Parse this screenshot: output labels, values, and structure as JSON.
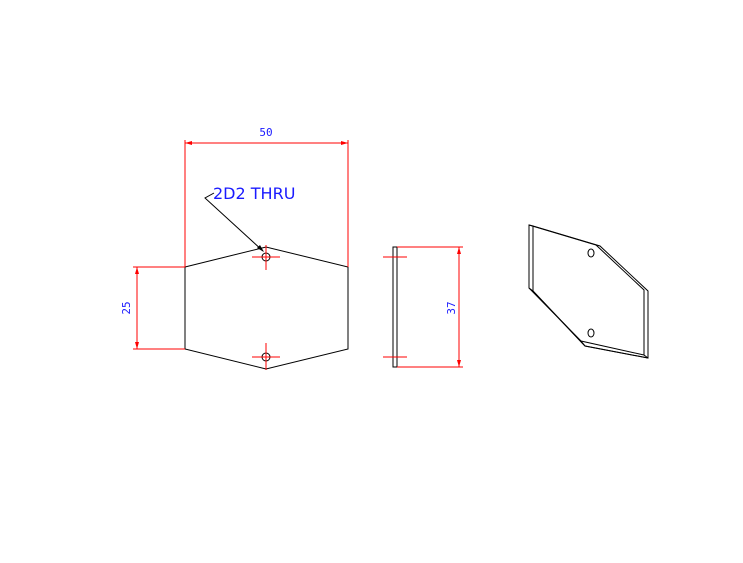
{
  "drawing": {
    "dimensions": {
      "width": "50",
      "height_left": "25",
      "height_side": "37"
    },
    "note": "2D2 THRU",
    "colors": {
      "outline": "#000000",
      "dimension_lines": "#ff0000",
      "dimension_text": "#1a1aff"
    }
  }
}
